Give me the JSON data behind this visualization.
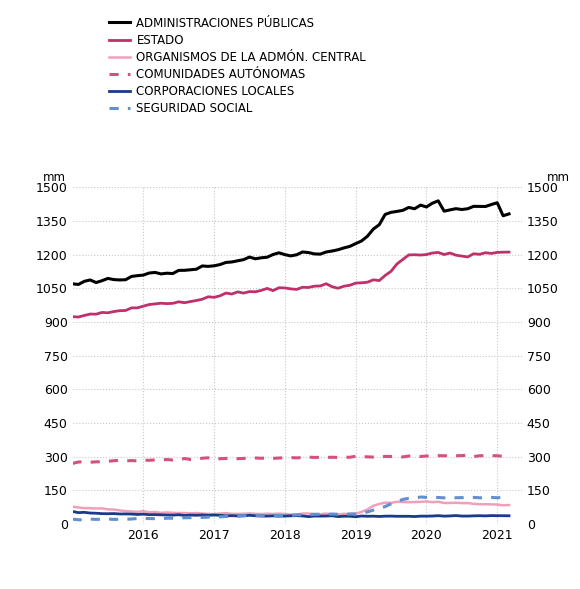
{
  "ylim": [
    0,
    1500
  ],
  "yticks": [
    0,
    150,
    300,
    450,
    600,
    750,
    900,
    1050,
    1200,
    1350,
    1500
  ],
  "ylabel": "mm",
  "xstart": 2015.0,
  "xend": 2021.25,
  "background_color": "#ffffff",
  "grid_color": "#c8c8c8",
  "legend_entries": [
    {
      "label": "ADMINISTRACIONES PÚBLICAS",
      "color": "#000000",
      "linestyle": "solid",
      "linewidth": 2.2
    },
    {
      "label": "ESTADO",
      "color": "#c0306a",
      "linestyle": "solid",
      "linewidth": 2.0
    },
    {
      "label": "ORGANISMOS DE LA ADMÓN. CENTRAL",
      "color": "#f0a0b8",
      "linestyle": "solid",
      "linewidth": 1.8
    },
    {
      "label": "COMUNIDADES AUTÓNOMAS",
      "color": "#d45080",
      "linestyle": "dotted",
      "linewidth": 2.2
    },
    {
      "label": "CORPORACIONES LOCALES",
      "color": "#1a3a8a",
      "linestyle": "solid",
      "linewidth": 2.0
    },
    {
      "label": "SEGURIDAD SOCIAL",
      "color": "#6090d0",
      "linestyle": "dotted",
      "linewidth": 2.2
    }
  ],
  "admin_pub": [
    1068,
    1072,
    1077,
    1082,
    1085,
    1090,
    1093,
    1090,
    1087,
    1092,
    1098,
    1102,
    1108,
    1112,
    1118,
    1118,
    1115,
    1120,
    1125,
    1130,
    1133,
    1138,
    1143,
    1148,
    1152,
    1157,
    1162,
    1165,
    1170,
    1175,
    1178,
    1183,
    1188,
    1192,
    1197,
    1202,
    1200,
    1198,
    1203,
    1208,
    1205,
    1200,
    1205,
    1210,
    1215,
    1220,
    1225,
    1235,
    1245,
    1260,
    1280,
    1310,
    1340,
    1380,
    1390,
    1395,
    1398,
    1402,
    1408,
    1415,
    1420,
    1430,
    1438,
    1390,
    1395,
    1400,
    1402,
    1406,
    1410,
    1415,
    1420,
    1428,
    1435,
    1370,
    1380
  ],
  "estado": [
    920,
    924,
    928,
    932,
    936,
    940,
    944,
    948,
    952,
    957,
    960,
    965,
    970,
    975,
    978,
    980,
    982,
    985,
    990,
    994,
    998,
    1002,
    1006,
    1010,
    1014,
    1018,
    1022,
    1026,
    1030,
    1033,
    1036,
    1039,
    1042,
    1045,
    1048,
    1050,
    1050,
    1050,
    1052,
    1054,
    1056,
    1058,
    1060,
    1062,
    1058,
    1055,
    1058,
    1062,
    1066,
    1070,
    1075,
    1080,
    1090,
    1110,
    1130,
    1160,
    1185,
    1195,
    1200,
    1205,
    1205,
    1205,
    1205,
    1190,
    1192,
    1195,
    1198,
    1200,
    1202,
    1205,
    1210,
    1208,
    1210,
    1205,
    1210
  ],
  "organismos": [
    78,
    76,
    74,
    72,
    70,
    68,
    66,
    64,
    62,
    60,
    58,
    56,
    55,
    54,
    53,
    52,
    51,
    50,
    50,
    50,
    49,
    49,
    48,
    48,
    47,
    47,
    47,
    46,
    46,
    46,
    46,
    46,
    46,
    45,
    45,
    45,
    45,
    45,
    45,
    45,
    45,
    45,
    45,
    45,
    45,
    45,
    45,
    46,
    47,
    55,
    65,
    80,
    90,
    95,
    98,
    100,
    100,
    100,
    100,
    100,
    100,
    100,
    100,
    95,
    95,
    94,
    93,
    92,
    91,
    90,
    89,
    88,
    87,
    86,
    85
  ],
  "comunidades": [
    270,
    273,
    275,
    277,
    278,
    280,
    281,
    282,
    282,
    283,
    284,
    285,
    285,
    286,
    287,
    287,
    288,
    288,
    289,
    289,
    290,
    290,
    291,
    291,
    292,
    292,
    292,
    293,
    293,
    293,
    294,
    294,
    294,
    295,
    295,
    295,
    296,
    296,
    296,
    296,
    297,
    297,
    297,
    297,
    298,
    298,
    298,
    298,
    299,
    299,
    299,
    300,
    300,
    300,
    301,
    301,
    302,
    302,
    303,
    303,
    304,
    304,
    305,
    305,
    305,
    305,
    305,
    305,
    305,
    305,
    305,
    305,
    305,
    305,
    305
  ],
  "corporaciones": [
    55,
    53,
    52,
    50,
    49,
    48,
    47,
    46,
    45,
    44,
    44,
    43,
    43,
    42,
    42,
    42,
    41,
    41,
    41,
    40,
    40,
    40,
    40,
    39,
    39,
    39,
    39,
    38,
    38,
    38,
    38,
    37,
    37,
    37,
    37,
    37,
    37,
    37,
    37,
    36,
    36,
    36,
    36,
    36,
    36,
    36,
    36,
    35,
    35,
    35,
    35,
    35,
    35,
    35,
    35,
    35,
    35,
    35,
    35,
    36,
    36,
    36,
    37,
    37,
    37,
    37,
    37,
    37,
    37,
    37,
    37,
    37,
    37,
    37,
    37
  ],
  "seguridad": [
    20,
    20,
    21,
    21,
    22,
    22,
    22,
    23,
    23,
    24,
    24,
    25,
    25,
    25,
    26,
    26,
    27,
    27,
    28,
    28,
    29,
    30,
    30,
    31,
    32,
    33,
    34,
    35,
    36,
    37,
    38,
    38,
    38,
    39,
    39,
    40,
    40,
    40,
    41,
    42,
    42,
    43,
    43,
    44,
    44,
    44,
    45,
    46,
    47,
    50,
    55,
    62,
    70,
    80,
    90,
    100,
    110,
    115,
    118,
    120,
    120,
    120,
    120,
    118,
    118,
    118,
    118,
    118,
    118,
    118,
    118,
    118,
    118,
    118,
    120
  ]
}
